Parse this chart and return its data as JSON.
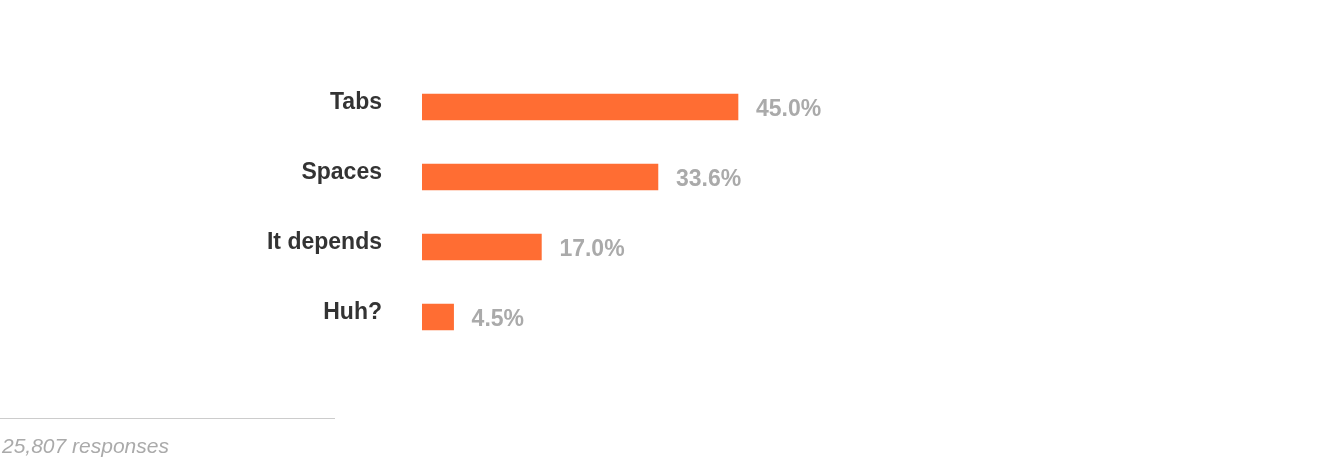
{
  "chart_data": {
    "type": "bar",
    "orientation": "horizontal",
    "categories": [
      "Tabs",
      "Spaces",
      "It depends",
      "Huh?"
    ],
    "values": [
      45.0,
      33.6,
      17.0,
      4.5
    ],
    "value_labels": [
      "45.0%",
      "33.6%",
      "17.0%",
      "4.5%"
    ],
    "color": "#ff6d33",
    "annotations": [
      "25,807 responses"
    ],
    "legend": false
  }
}
